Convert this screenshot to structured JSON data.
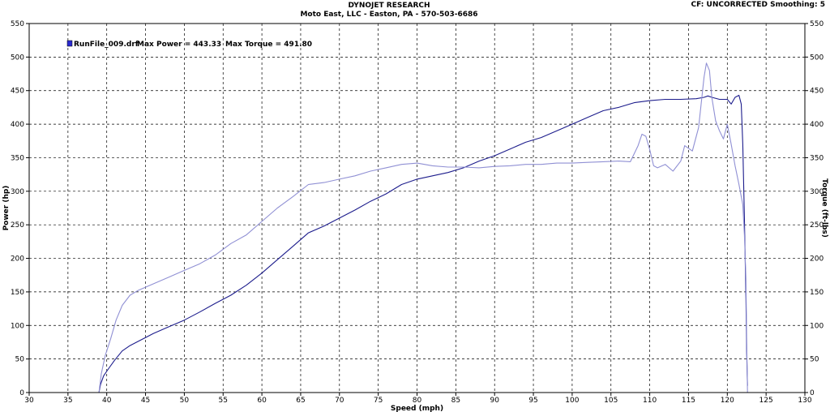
{
  "header": {
    "title": "DYNOJET RESEARCH",
    "subtitle": "Moto East, LLC - Easton, PA - 570-503-6686",
    "cf_label": "CF: UNCORRECTED  Smoothing: 5"
  },
  "chart_data": {
    "type": "line",
    "xlabel": "Speed (mph)",
    "ylabel": "Power (hp)",
    "y2label": "Torque (ft-lbs)",
    "xlim": [
      30,
      130
    ],
    "ylim": [
      0,
      550
    ],
    "y2lim": [
      0,
      550
    ],
    "x_ticks": [
      30,
      35,
      40,
      45,
      50,
      55,
      60,
      65,
      70,
      75,
      80,
      85,
      90,
      95,
      100,
      105,
      110,
      115,
      120,
      125,
      130
    ],
    "y_ticks": [
      0,
      50,
      100,
      150,
      200,
      250,
      300,
      350,
      400,
      450,
      500,
      550
    ],
    "y2_ticks": [
      0,
      50,
      100,
      150,
      200,
      250,
      300,
      350,
      400,
      450,
      500,
      550
    ],
    "grid": true,
    "legend": {
      "position": "top-left",
      "file": "RunFile_009.drf",
      "max_power_label": "Max Power = 443.33",
      "max_torque_label": "Max Torque = 491.80",
      "marker_color": "#2a2ad0"
    },
    "series": [
      {
        "axis": "power",
        "color": "#1c1c8c",
        "points": [
          [
            39.0,
            0
          ],
          [
            39.2,
            12
          ],
          [
            39.6,
            25
          ],
          [
            40.2,
            35
          ],
          [
            41,
            48
          ],
          [
            42,
            62
          ],
          [
            43,
            70
          ],
          [
            44,
            76
          ],
          [
            45,
            82
          ],
          [
            46,
            88
          ],
          [
            48,
            98
          ],
          [
            50,
            108
          ],
          [
            52,
            120
          ],
          [
            54,
            133
          ],
          [
            56,
            145
          ],
          [
            58,
            160
          ],
          [
            60,
            178
          ],
          [
            62,
            198
          ],
          [
            64,
            218
          ],
          [
            66,
            238
          ],
          [
            68,
            248
          ],
          [
            70,
            260
          ],
          [
            72,
            272
          ],
          [
            74,
            285
          ],
          [
            76,
            296
          ],
          [
            78,
            310
          ],
          [
            80,
            318
          ],
          [
            82,
            323
          ],
          [
            84,
            328
          ],
          [
            86,
            335
          ],
          [
            88,
            345
          ],
          [
            90,
            353
          ],
          [
            92,
            363
          ],
          [
            94,
            373
          ],
          [
            96,
            380
          ],
          [
            98,
            390
          ],
          [
            100,
            400
          ],
          [
            102,
            410
          ],
          [
            104,
            420
          ],
          [
            106,
            425
          ],
          [
            108,
            432
          ],
          [
            110,
            435
          ],
          [
            112,
            437
          ],
          [
            114,
            437
          ],
          [
            116,
            438
          ],
          [
            117,
            440
          ],
          [
            117.5,
            442
          ],
          [
            118,
            440
          ],
          [
            119,
            437
          ],
          [
            120,
            437
          ],
          [
            120.5,
            430
          ],
          [
            121,
            440
          ],
          [
            121.5,
            443
          ],
          [
            121.8,
            430
          ],
          [
            122,
            370
          ],
          [
            122.2,
            260
          ],
          [
            122.4,
            140
          ],
          [
            122.5,
            60
          ],
          [
            122.6,
            10
          ]
        ]
      },
      {
        "axis": "torque",
        "color": "#9090d4",
        "points": [
          [
            39.0,
            0
          ],
          [
            39.3,
            28
          ],
          [
            39.8,
            55
          ],
          [
            40.5,
            80
          ],
          [
            41.2,
            108
          ],
          [
            42,
            130
          ],
          [
            43,
            145
          ],
          [
            44,
            152
          ],
          [
            46,
            162
          ],
          [
            48,
            172
          ],
          [
            50,
            182
          ],
          [
            52,
            192
          ],
          [
            54,
            205
          ],
          [
            56,
            222
          ],
          [
            58,
            235
          ],
          [
            60,
            255
          ],
          [
            62,
            275
          ],
          [
            64,
            292
          ],
          [
            66,
            310
          ],
          [
            68,
            313
          ],
          [
            70,
            318
          ],
          [
            72,
            323
          ],
          [
            74,
            330
          ],
          [
            76,
            335
          ],
          [
            78,
            340
          ],
          [
            80,
            342
          ],
          [
            82,
            338
          ],
          [
            84,
            336
          ],
          [
            86,
            336
          ],
          [
            88,
            335
          ],
          [
            90,
            337
          ],
          [
            92,
            338
          ],
          [
            94,
            340
          ],
          [
            96,
            340
          ],
          [
            98,
            342
          ],
          [
            100,
            342
          ],
          [
            102,
            343
          ],
          [
            104,
            344
          ],
          [
            106,
            345
          ],
          [
            107.5,
            344
          ],
          [
            108.5,
            368
          ],
          [
            109,
            385
          ],
          [
            109.5,
            382
          ],
          [
            110,
            362
          ],
          [
            110.5,
            338
          ],
          [
            111,
            335
          ],
          [
            112,
            340
          ],
          [
            113,
            330
          ],
          [
            114,
            345
          ],
          [
            114.5,
            368
          ],
          [
            115.5,
            360
          ],
          [
            116.3,
            395
          ],
          [
            117,
            470
          ],
          [
            117.3,
            491
          ],
          [
            117.7,
            480
          ],
          [
            118,
            440
          ],
          [
            118.5,
            405
          ],
          [
            119,
            390
          ],
          [
            119.5,
            378
          ],
          [
            120,
            400
          ],
          [
            120.5,
            370
          ],
          [
            121,
            338
          ],
          [
            121.5,
            310
          ],
          [
            122,
            280
          ],
          [
            122.2,
            235
          ],
          [
            122.4,
            170
          ],
          [
            122.5,
            80
          ],
          [
            122.6,
            0
          ]
        ]
      }
    ]
  }
}
